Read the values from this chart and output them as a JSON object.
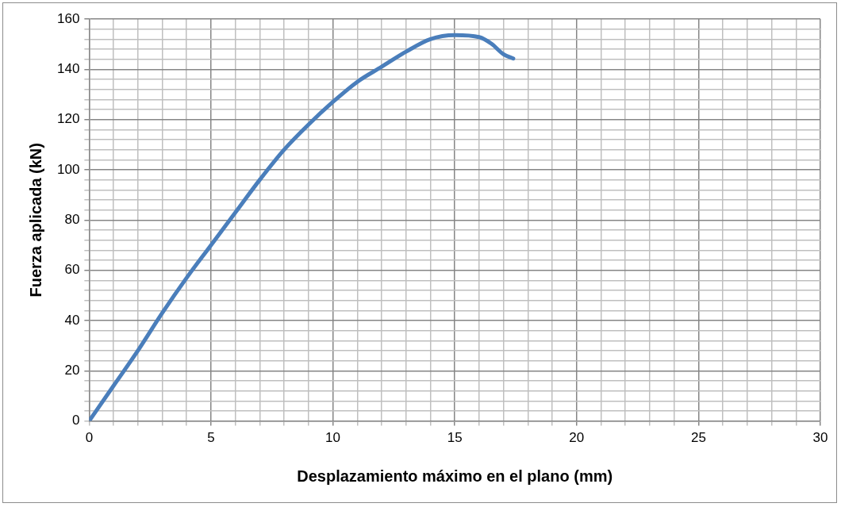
{
  "chart_data": {
    "type": "line",
    "xlabel": "Desplazamiento máximo en el plano (mm)",
    "ylabel": "Fuerza aplicada (kN)",
    "x": [
      0,
      1,
      2,
      3,
      4,
      5,
      6,
      7,
      8,
      9,
      10,
      11,
      12,
      13,
      14,
      15,
      16,
      16.5,
      17,
      17.4
    ],
    "series": [
      {
        "color": "#4a7ebb",
        "values": [
          0,
          14,
          28,
          43,
          57,
          70,
          83,
          96,
          108,
          118,
          127,
          135,
          141,
          147,
          152,
          153.6,
          152.8,
          150.2,
          146,
          144.3
        ]
      }
    ],
    "xlim": [
      0,
      30
    ],
    "xticks": [
      0,
      {
        "value": 1,
        "label": null
      },
      {
        "value": 2,
        "label": null
      },
      {
        "value": 3,
        "label": null
      },
      {
        "value": 4,
        "label": null
      },
      5,
      {
        "value": 6,
        "label": null
      },
      {
        "value": 7,
        "label": null
      },
      {
        "value": 8,
        "label": null
      },
      {
        "value": 9,
        "label": null
      },
      10,
      {
        "value": 11,
        "label": null
      },
      {
        "value": 12,
        "label": null
      },
      {
        "value": 13,
        "label": null
      },
      {
        "value": 14,
        "label": null
      },
      15,
      {
        "value": 16,
        "label": null
      },
      {
        "value": 17,
        "label": null
      },
      {
        "value": 18,
        "label": null
      },
      {
        "value": 19,
        "label": null
      },
      20,
      {
        "value": 21,
        "label": null
      },
      {
        "value": 22,
        "label": null
      },
      {
        "value": 23,
        "label": null
      },
      {
        "value": 24,
        "label": null
      },
      25,
      {
        "value": 26,
        "label": null
      },
      {
        "value": 27,
        "label": null
      },
      {
        "value": 28,
        "label": null
      },
      {
        "value": 29,
        "label": null
      },
      30
    ],
    "ylim": [
      0,
      160
    ],
    "yticks": [
      0,
      {
        "value": 4,
        "label": null
      },
      {
        "value": 8,
        "label": null
      },
      {
        "value": 12,
        "label": null
      },
      {
        "value": 16,
        "label": null
      },
      20,
      {
        "value": 24,
        "label": null
      },
      {
        "value": 28,
        "label": null
      },
      {
        "value": 32,
        "label": null
      },
      {
        "value": 36,
        "label": null
      },
      40,
      {
        "value": 44,
        "label": null
      },
      {
        "value": 48,
        "label": null
      },
      {
        "value": 52,
        "label": null
      },
      {
        "value": 56,
        "label": null
      },
      60,
      {
        "value": 64,
        "label": null
      },
      {
        "value": 68,
        "label": null
      },
      {
        "value": 72,
        "label": null
      },
      {
        "value": 76,
        "label": null
      },
      80,
      {
        "value": 84,
        "label": null
      },
      {
        "value": 88,
        "label": null
      },
      {
        "value": 92,
        "label": null
      },
      {
        "value": 96,
        "label": null
      },
      100,
      {
        "value": 104,
        "label": null
      },
      {
        "value": 108,
        "label": null
      },
      {
        "value": 112,
        "label": null
      },
      {
        "value": 116,
        "label": null
      },
      120,
      {
        "value": 124,
        "label": null
      },
      {
        "value": 128,
        "label": null
      },
      {
        "value": 132,
        "label": null
      },
      {
        "value": 136,
        "label": null
      },
      140,
      {
        "value": 144,
        "label": null
      },
      {
        "value": 148,
        "label": null
      },
      {
        "value": 152,
        "label": null
      },
      {
        "value": 156,
        "label": null
      },
      160
    ],
    "grid": true,
    "legend": false,
    "marker": "none",
    "line_style": "solid"
  }
}
